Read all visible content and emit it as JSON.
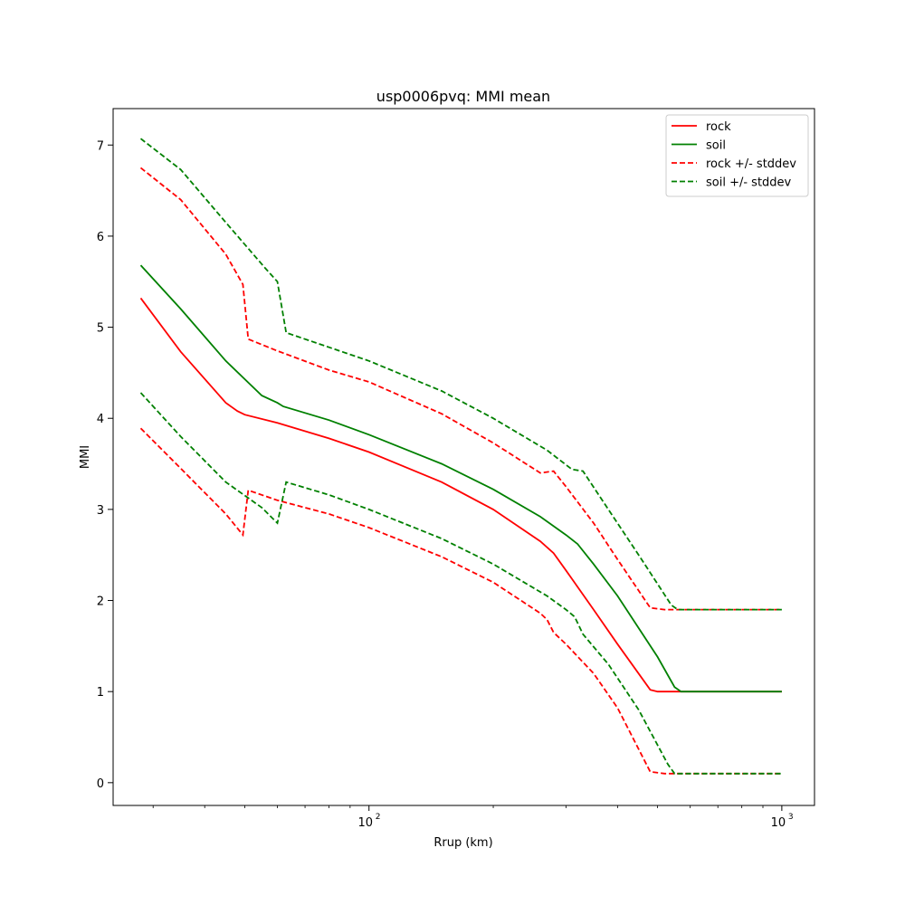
{
  "chart_data": {
    "type": "line",
    "title": "usp0006pvq: MMI mean",
    "xlabel": "Rrup (km)",
    "ylabel": "MMI",
    "xscale": "log",
    "xlim": [
      24,
      1200
    ],
    "ylim": [
      -0.25,
      7.4
    ],
    "grid": false,
    "legend_position": "top-right",
    "x_major_ticks": [
      {
        "value": 100,
        "base": "10",
        "exp": "2"
      },
      {
        "value": 1000,
        "base": "10",
        "exp": "3"
      }
    ],
    "x_minor_ticks": [
      30,
      40,
      50,
      60,
      70,
      80,
      90,
      200,
      300,
      400,
      500,
      600,
      700,
      800,
      900
    ],
    "y_ticks": [
      0,
      1,
      2,
      3,
      4,
      5,
      6,
      7
    ],
    "series": [
      {
        "name": "rock",
        "color": "#ff0000",
        "dash": false,
        "points": [
          [
            28,
            5.32
          ],
          [
            35,
            4.73
          ],
          [
            45,
            4.17
          ],
          [
            48,
            4.08
          ],
          [
            50,
            4.04
          ],
          [
            60,
            3.95
          ],
          [
            80,
            3.78
          ],
          [
            100,
            3.63
          ],
          [
            150,
            3.3
          ],
          [
            200,
            3.0
          ],
          [
            260,
            2.65
          ],
          [
            280,
            2.52
          ],
          [
            300,
            2.33
          ],
          [
            350,
            1.9
          ],
          [
            400,
            1.52
          ],
          [
            480,
            1.02
          ],
          [
            500,
            1.0
          ],
          [
            1000,
            1.0
          ]
        ]
      },
      {
        "name": "soil",
        "color": "#008000",
        "dash": false,
        "points": [
          [
            28,
            5.68
          ],
          [
            35,
            5.2
          ],
          [
            45,
            4.63
          ],
          [
            55,
            4.25
          ],
          [
            60,
            4.17
          ],
          [
            62,
            4.13
          ],
          [
            80,
            3.98
          ],
          [
            100,
            3.82
          ],
          [
            150,
            3.5
          ],
          [
            200,
            3.22
          ],
          [
            260,
            2.92
          ],
          [
            300,
            2.72
          ],
          [
            320,
            2.62
          ],
          [
            350,
            2.4
          ],
          [
            400,
            2.05
          ],
          [
            500,
            1.38
          ],
          [
            550,
            1.05
          ],
          [
            570,
            1.0
          ],
          [
            1000,
            1.0
          ]
        ]
      },
      {
        "name": "rock +/- stddev",
        "color": "#ff0000",
        "dash": true,
        "points": [
          [
            28,
            6.75
          ],
          [
            35,
            6.4
          ],
          [
            45,
            5.8
          ],
          [
            49.5,
            5.47
          ],
          [
            51,
            4.87
          ],
          [
            60,
            4.74
          ],
          [
            80,
            4.53
          ],
          [
            100,
            4.4
          ],
          [
            150,
            4.05
          ],
          [
            200,
            3.73
          ],
          [
            260,
            3.4
          ],
          [
            280,
            3.42
          ],
          [
            300,
            3.25
          ],
          [
            350,
            2.85
          ],
          [
            400,
            2.45
          ],
          [
            480,
            1.92
          ],
          [
            520,
            1.9
          ],
          [
            1000,
            1.9
          ]
        ]
      },
      {
        "name": "soil +/- stddev",
        "color": "#008000",
        "dash": true,
        "points": [
          [
            28,
            7.07
          ],
          [
            35,
            6.73
          ],
          [
            45,
            6.15
          ],
          [
            56,
            5.65
          ],
          [
            60,
            5.5
          ],
          [
            63,
            4.94
          ],
          [
            80,
            4.78
          ],
          [
            100,
            4.63
          ],
          [
            150,
            4.3
          ],
          [
            200,
            4.0
          ],
          [
            270,
            3.65
          ],
          [
            310,
            3.44
          ],
          [
            330,
            3.42
          ],
          [
            380,
            3.0
          ],
          [
            450,
            2.5
          ],
          [
            540,
            1.95
          ],
          [
            560,
            1.9
          ],
          [
            1000,
            1.9
          ]
        ]
      },
      {
        "name": "",
        "color": "#ff0000",
        "dash": true,
        "points": [
          [
            28,
            3.89
          ],
          [
            35,
            3.45
          ],
          [
            45,
            2.95
          ],
          [
            49.5,
            2.72
          ],
          [
            51,
            3.21
          ],
          [
            60,
            3.1
          ],
          [
            80,
            2.95
          ],
          [
            100,
            2.8
          ],
          [
            150,
            2.48
          ],
          [
            200,
            2.2
          ],
          [
            260,
            1.86
          ],
          [
            270,
            1.79
          ],
          [
            280,
            1.65
          ],
          [
            300,
            1.52
          ],
          [
            350,
            1.2
          ],
          [
            400,
            0.82
          ],
          [
            480,
            0.12
          ],
          [
            520,
            0.1
          ],
          [
            1000,
            0.1
          ]
        ]
      },
      {
        "name": "",
        "color": "#008000",
        "dash": true,
        "points": [
          [
            28,
            4.28
          ],
          [
            35,
            3.8
          ],
          [
            45,
            3.3
          ],
          [
            55,
            3.02
          ],
          [
            60,
            2.85
          ],
          [
            63,
            3.3
          ],
          [
            80,
            3.16
          ],
          [
            100,
            3.0
          ],
          [
            150,
            2.68
          ],
          [
            200,
            2.4
          ],
          [
            270,
            2.05
          ],
          [
            300,
            1.9
          ],
          [
            315,
            1.82
          ],
          [
            330,
            1.63
          ],
          [
            380,
            1.3
          ],
          [
            450,
            0.8
          ],
          [
            530,
            0.2
          ],
          [
            550,
            0.1
          ],
          [
            1000,
            0.1
          ]
        ]
      }
    ]
  }
}
